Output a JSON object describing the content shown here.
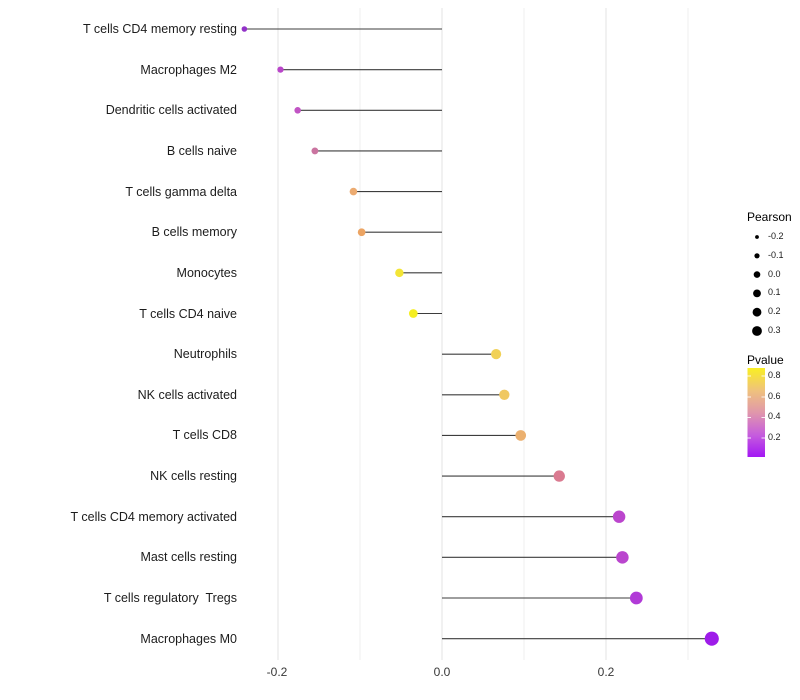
{
  "chart_data": {
    "type": "lollipop",
    "orientation": "horizontal",
    "title": "",
    "xlabel": "",
    "ylabel": "",
    "grid": "vertical-light-gray",
    "x_axis": {
      "tick_labels": [
        "-0.2",
        "0.0",
        "0.2"
      ],
      "tick_values": [
        -0.2,
        0.0,
        0.2
      ],
      "minor_gridline_values": [
        -0.1,
        0.1,
        0.3
      ],
      "range": [
        -0.27,
        0.37
      ]
    },
    "baseline_value": 0.0,
    "points": [
      {
        "label": "T cells CD4 memory resting",
        "pearson": -0.241,
        "pvalue_est": 0.13,
        "color": "#9232c8"
      },
      {
        "label": "Macrophages M2",
        "pearson": -0.197,
        "pvalue_est": 0.25,
        "color": "#b945c9"
      },
      {
        "label": "Dendritic cells activated",
        "pearson": -0.176,
        "pvalue_est": 0.28,
        "color": "#c154c4"
      },
      {
        "label": "B cells naive",
        "pearson": -0.155,
        "pvalue_est": 0.42,
        "color": "#ca74a0"
      },
      {
        "label": "T cells gamma delta",
        "pearson": -0.108,
        "pvalue_est": 0.6,
        "color": "#ecab71"
      },
      {
        "label": "B cells memory",
        "pearson": -0.098,
        "pvalue_est": 0.62,
        "color": "#eca463"
      },
      {
        "label": "Monocytes",
        "pearson": -0.052,
        "pvalue_est": 0.83,
        "color": "#f3e536"
      },
      {
        "label": "T cells CD4 naive",
        "pearson": -0.035,
        "pvalue_est": 0.87,
        "color": "#f5ee22"
      },
      {
        "label": "Neutrophils",
        "pearson": 0.066,
        "pvalue_est": 0.74,
        "color": "#f1d157"
      },
      {
        "label": "NK cells activated",
        "pearson": 0.076,
        "pvalue_est": 0.72,
        "color": "#f0c862"
      },
      {
        "label": "T cells CD8",
        "pearson": 0.096,
        "pvalue_est": 0.63,
        "color": "#ebb06f"
      },
      {
        "label": "NK cells resting",
        "pearson": 0.143,
        "pvalue_est": 0.47,
        "color": "#da7a90"
      },
      {
        "label": "T cells CD4 memory activated",
        "pearson": 0.216,
        "pvalue_est": 0.26,
        "color": "#bb45cd"
      },
      {
        "label": "Mast cells resting",
        "pearson": 0.22,
        "pvalue_est": 0.26,
        "color": "#ba46ce"
      },
      {
        "label": "T cells regulatory  Tregs",
        "pearson": 0.237,
        "pvalue_est": 0.21,
        "color": "#b13ad7"
      },
      {
        "label": "Macrophages M0",
        "pearson": 0.329,
        "pvalue_est": 0.06,
        "color": "#9e1ce9"
      }
    ]
  },
  "legends": {
    "size": {
      "title": "Pearson",
      "entry_labels": [
        "-0.2",
        "-0.1",
        "0.0",
        "0.1",
        "0.2",
        "0.3"
      ],
      "entry_values": [
        -0.2,
        -0.1,
        0.0,
        0.1,
        0.2,
        0.3
      ],
      "dot_color": "#000000"
    },
    "color": {
      "title": "Pvalue",
      "tick_labels": [
        "0.8",
        "0.6",
        "0.4",
        "0.2"
      ],
      "tick_values": [
        0.8,
        0.6,
        0.4,
        0.2
      ],
      "gradient_top_to_bottom": [
        "#f9ef23",
        "#efc17e",
        "#e097ab",
        "#c65ddd",
        "#a317f4"
      ]
    }
  },
  "colors": {
    "stem": "#3d3d3d",
    "major_gridline": "#e3e3e3",
    "minor_gridline": "#efefef",
    "background": "#ffffff"
  }
}
